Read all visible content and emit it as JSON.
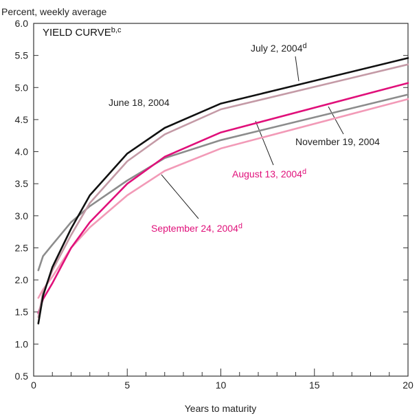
{
  "chart_data": {
    "type": "line",
    "title": "YIELD CURVE",
    "title_superscript": "b,c",
    "ylabel": "Percent, weekly average",
    "xlabel": "Years to maturity",
    "xlim": [
      0,
      20
    ],
    "ylim": [
      0.5,
      6.0
    ],
    "xticks": [
      0,
      5,
      10,
      15,
      20
    ],
    "yticks": [
      0.5,
      1.0,
      1.5,
      2.0,
      2.5,
      3.0,
      3.5,
      4.0,
      4.5,
      5.0,
      5.5,
      6.0
    ],
    "ytick_labels": [
      "0.5",
      "1.0",
      "1.5",
      "2.0",
      "2.5",
      "3.0",
      "3.5",
      "4.0",
      "4.5",
      "5.0",
      "5.5",
      "6.0"
    ],
    "grid": false,
    "legend": "none",
    "series": [
      {
        "name": "June 18, 2004",
        "superscript": "",
        "color": "#111111",
        "x": [
          0.25,
          0.5,
          1,
          2,
          3,
          5,
          7,
          10,
          20
        ],
        "y": [
          1.32,
          1.75,
          2.2,
          2.8,
          3.32,
          3.97,
          4.37,
          4.75,
          5.46
        ]
      },
      {
        "name": "July 2, 2004",
        "superscript": "d",
        "color": "#c49aa6",
        "x": [
          0.25,
          0.5,
          1,
          2,
          3,
          5,
          7,
          10,
          20
        ],
        "y": [
          1.42,
          1.8,
          2.15,
          2.7,
          3.2,
          3.85,
          4.27,
          4.66,
          5.36
        ]
      },
      {
        "name": "August 13, 2004",
        "superscript": "d",
        "color": "#e0107a",
        "x": [
          0.25,
          0.5,
          1,
          2,
          3,
          5,
          7,
          10,
          20
        ],
        "y": [
          1.48,
          1.7,
          1.95,
          2.5,
          2.9,
          3.5,
          3.92,
          4.3,
          5.07
        ]
      },
      {
        "name": "September 24, 2004",
        "superscript": "d",
        "color": "#f29ab7",
        "x": [
          0.25,
          0.5,
          1,
          2,
          3,
          5,
          7,
          10,
          20
        ],
        "y": [
          1.72,
          1.85,
          2.05,
          2.5,
          2.82,
          3.32,
          3.7,
          4.05,
          4.82
        ]
      },
      {
        "name": "November 19, 2004",
        "superscript": "",
        "color": "#8c8c8c",
        "x": [
          0.25,
          0.5,
          1,
          2,
          3,
          5,
          7,
          10,
          20
        ],
        "y": [
          2.15,
          2.37,
          2.55,
          2.9,
          3.15,
          3.55,
          3.9,
          4.18,
          4.89
        ]
      }
    ]
  }
}
